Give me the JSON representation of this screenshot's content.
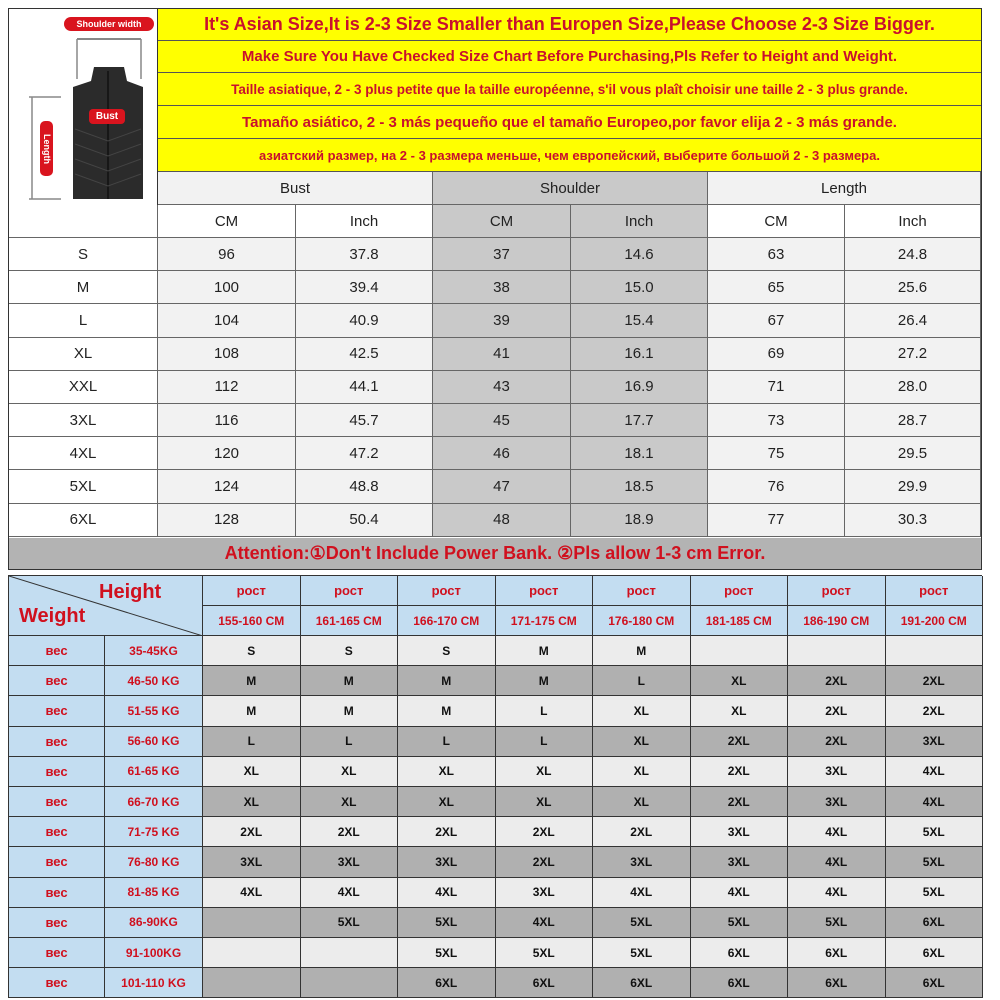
{
  "product": {
    "shoulder_label": "Shoulder width",
    "bust_label": "Bust",
    "length_label": "Length"
  },
  "banners": [
    "It's Asian Size,It is 2-3 Size Smaller than Europen Size,Please Choose 2-3 Size Bigger.",
    "Make Sure You Have Checked Size Chart Before Purchasing,Pls Refer to Height and Weight.",
    "Taille asiatique, 2 - 3 plus petite que la taille européenne, s'il vous plaît choisir une taille 2 - 3 plus grande.",
    "Tamaño asiático, 2 - 3 más pequeño que el tamaño Europeo,por favor elija 2 - 3 más grande.",
    "азиатский размер, на 2 - 3 размера меньше, чем европейский, выберите большой 2 - 3 размера."
  ],
  "size_table": {
    "groups": [
      "Bust",
      "Shoulder",
      "Length"
    ],
    "units": [
      "CM",
      "Inch",
      "CM",
      "Inch",
      "CM",
      "Inch"
    ],
    "rows": [
      {
        "size": "S",
        "values": [
          "96",
          "37.8",
          "37",
          "14.6",
          "63",
          "24.8"
        ]
      },
      {
        "size": "M",
        "values": [
          "100",
          "39.4",
          "38",
          "15.0",
          "65",
          "25.6"
        ]
      },
      {
        "size": "L",
        "values": [
          "104",
          "40.9",
          "39",
          "15.4",
          "67",
          "26.4"
        ]
      },
      {
        "size": "XL",
        "values": [
          "108",
          "42.5",
          "41",
          "16.1",
          "69",
          "27.2"
        ]
      },
      {
        "size": "XXL",
        "values": [
          "112",
          "44.1",
          "43",
          "16.9",
          "71",
          "28.0"
        ]
      },
      {
        "size": "3XL",
        "values": [
          "116",
          "45.7",
          "45",
          "17.7",
          "73",
          "28.7"
        ]
      },
      {
        "size": "4XL",
        "values": [
          "120",
          "47.2",
          "46",
          "18.1",
          "75",
          "29.5"
        ]
      },
      {
        "size": "5XL",
        "values": [
          "124",
          "48.8",
          "47",
          "18.5",
          "76",
          "29.9"
        ]
      },
      {
        "size": "6XL",
        "values": [
          "128",
          "50.4",
          "48",
          "18.9",
          "77",
          "30.3"
        ]
      }
    ]
  },
  "attention": "Attention:①Don't Include Power Bank. ②Pls allow 1-3 cm Error.",
  "fit_table": {
    "height_label": "Height",
    "weight_label": "Weight",
    "height_prefix": "рост",
    "weight_prefix": "вес",
    "heights": [
      "155-160 CM",
      "161-165 CM",
      "166-170 CM",
      "171-175 CM",
      "176-180 CM",
      "181-185 CM",
      "186-190 CM",
      "191-200 CM"
    ],
    "rows": [
      {
        "weight": "35-45KG",
        "sizes": [
          "S",
          "S",
          "S",
          "M",
          "M",
          "",
          "",
          ""
        ]
      },
      {
        "weight": "46-50 KG",
        "sizes": [
          "M",
          "M",
          "M",
          "M",
          "L",
          "XL",
          "2XL",
          "2XL"
        ]
      },
      {
        "weight": "51-55 KG",
        "sizes": [
          "M",
          "M",
          "M",
          "L",
          "XL",
          "XL",
          "2XL",
          "2XL"
        ]
      },
      {
        "weight": "56-60 KG",
        "sizes": [
          "L",
          "L",
          "L",
          "L",
          "XL",
          "2XL",
          "2XL",
          "3XL"
        ]
      },
      {
        "weight": "61-65 KG",
        "sizes": [
          "XL",
          "XL",
          "XL",
          "XL",
          "XL",
          "2XL",
          "3XL",
          "4XL"
        ]
      },
      {
        "weight": "66-70 KG",
        "sizes": [
          "XL",
          "XL",
          "XL",
          "XL",
          "XL",
          "2XL",
          "3XL",
          "4XL"
        ]
      },
      {
        "weight": "71-75 KG",
        "sizes": [
          "2XL",
          "2XL",
          "2XL",
          "2XL",
          "2XL",
          "3XL",
          "4XL",
          "5XL"
        ]
      },
      {
        "weight": "76-80 KG",
        "sizes": [
          "3XL",
          "3XL",
          "3XL",
          "2XL",
          "3XL",
          "3XL",
          "4XL",
          "5XL"
        ]
      },
      {
        "weight": "81-85 KG",
        "sizes": [
          "4XL",
          "4XL",
          "4XL",
          "3XL",
          "4XL",
          "4XL",
          "4XL",
          "5XL"
        ]
      },
      {
        "weight": "86-90KG",
        "sizes": [
          "",
          "5XL",
          "5XL",
          "4XL",
          "5XL",
          "5XL",
          "5XL",
          "6XL"
        ]
      },
      {
        "weight": "91-100KG",
        "sizes": [
          "",
          "",
          "5XL",
          "5XL",
          "5XL",
          "6XL",
          "6XL",
          "6XL"
        ]
      },
      {
        "weight": "101-110 KG",
        "sizes": [
          "",
          "",
          "6XL",
          "6XL",
          "6XL",
          "6XL",
          "6XL",
          "6XL"
        ]
      }
    ]
  },
  "colors": {
    "banner_bg": "#ffff00",
    "accent_red": "#d0101e",
    "header_blue": "#c3ddf1",
    "row_gray": "#b0b0b0"
  }
}
